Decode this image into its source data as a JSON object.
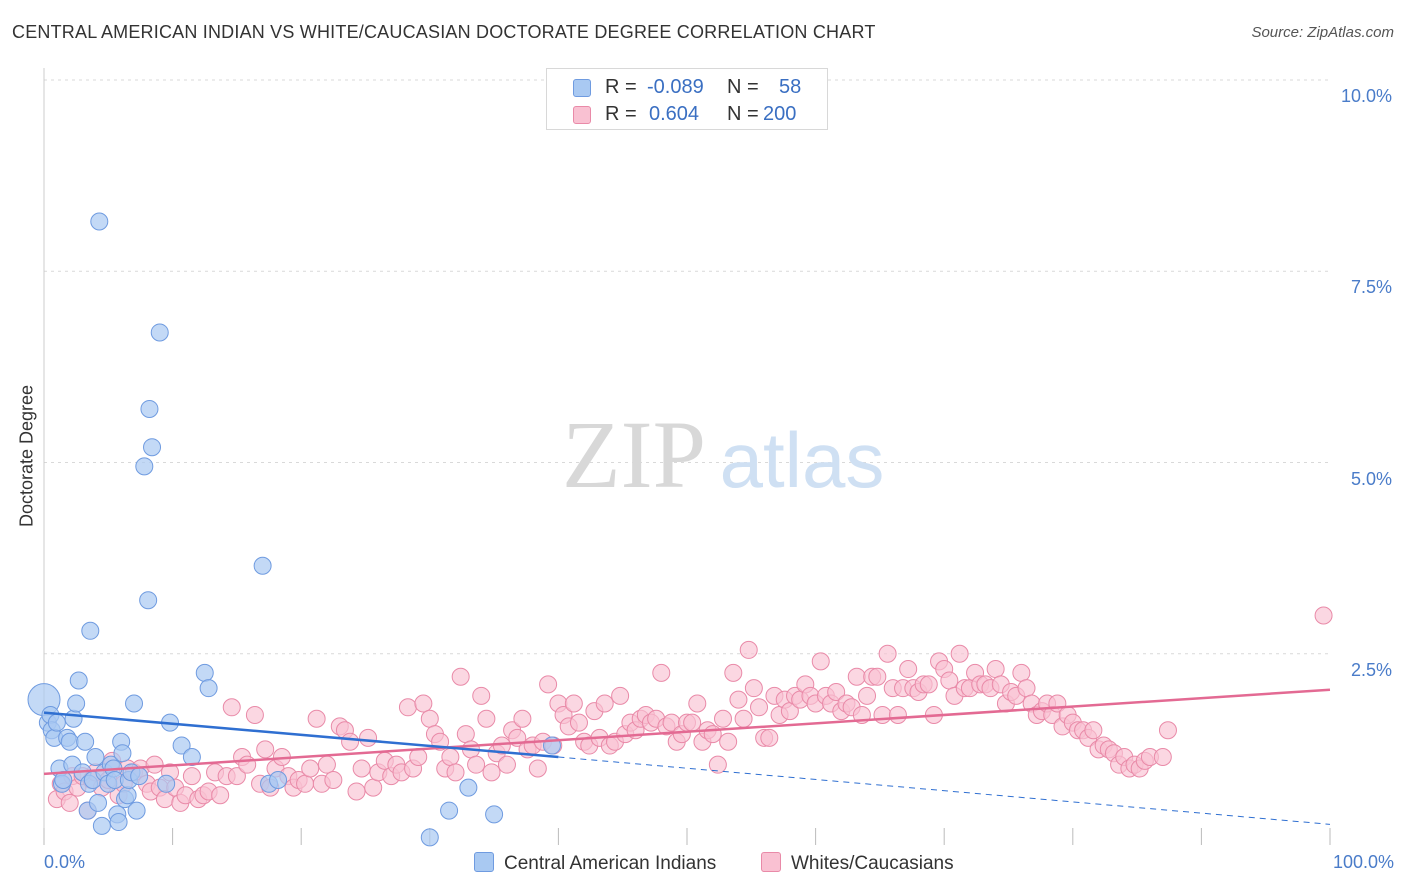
{
  "title": "CENTRAL AMERICAN INDIAN VS WHITE/CAUCASIAN DOCTORATE DEGREE CORRELATION CHART",
  "source": "Source: ZipAtlas.com",
  "watermark": {
    "zip": "ZIP",
    "atlas": "atlas"
  },
  "legend_stats": [
    {
      "r_label": "R =",
      "r_value": "-0.089",
      "n_label": "N =",
      "n_value": "58",
      "color": "#a9c9f2",
      "border": "#6f9be0"
    },
    {
      "r_label": "R =",
      "r_value": "0.604",
      "n_label": "N =",
      "n_value": "200",
      "color": "#f9c1d2",
      "border": "#e98aa8"
    }
  ],
  "colors": {
    "blue_fill": "#a9c9f2",
    "blue_stroke": "#6f9be0",
    "blue_line": "#2f6fd1",
    "pink_fill": "#f9c1d2",
    "pink_stroke": "#e98aa8",
    "pink_line": "#e36a93",
    "tick_text": "#4a7cc9",
    "grid": "#d9d9d9"
  },
  "chart_data": {
    "type": "scatter",
    "title": "CENTRAL AMERICAN INDIAN VS WHITE/CAUCASIAN DOCTORATE DEGREE CORRELATION CHART",
    "xlabel": "",
    "ylabel": "Doctorate Degree",
    "xlim": [
      0,
      100
    ],
    "ylim": [
      0,
      10
    ],
    "x_tick_labels": [
      {
        "value": 0,
        "label": "0.0%"
      },
      {
        "value": 100,
        "label": "100.0%"
      }
    ],
    "y_tick_labels": [
      {
        "value": 2.5,
        "label": "2.5%"
      },
      {
        "value": 5.0,
        "label": "5.0%"
      },
      {
        "value": 7.5,
        "label": "7.5%"
      },
      {
        "value": 10.0,
        "label": "10.0%"
      }
    ],
    "grid": true,
    "legend_position": "bottom",
    "series": [
      {
        "name": "Central American Indians",
        "r": -0.089,
        "n": 58,
        "trend": {
          "x": [
            0,
            40
          ],
          "y": [
            1.73,
            1.15
          ],
          "dashed_to": [
            100,
            0.27
          ]
        },
        "points": [
          [
            0,
            1.9
          ],
          [
            0.3,
            1.6
          ],
          [
            0.5,
            1.7
          ],
          [
            0.6,
            1.5
          ],
          [
            0.8,
            1.4
          ],
          [
            1,
            1.6
          ],
          [
            1.2,
            1.0
          ],
          [
            1.4,
            0.8
          ],
          [
            1.5,
            0.85
          ],
          [
            1.8,
            1.4
          ],
          [
            2,
            1.35
          ],
          [
            2.2,
            1.05
          ],
          [
            2.3,
            1.65
          ],
          [
            2.5,
            1.85
          ],
          [
            2.7,
            2.15
          ],
          [
            3,
            0.95
          ],
          [
            3.2,
            1.35
          ],
          [
            3.4,
            0.45
          ],
          [
            3.5,
            0.8
          ],
          [
            3.6,
            2.8
          ],
          [
            3.8,
            0.85
          ],
          [
            4,
            1.15
          ],
          [
            4.2,
            0.55
          ],
          [
            4.3,
            8.15
          ],
          [
            4.5,
            0.25
          ],
          [
            4.7,
            0.95
          ],
          [
            5,
            0.8
          ],
          [
            5.2,
            1.05
          ],
          [
            5.4,
            1.0
          ],
          [
            5.5,
            0.85
          ],
          [
            5.7,
            0.4
          ],
          [
            5.8,
            0.3
          ],
          [
            6,
            1.35
          ],
          [
            6.1,
            1.2
          ],
          [
            6.3,
            0.6
          ],
          [
            6.5,
            0.65
          ],
          [
            6.6,
            0.85
          ],
          [
            6.8,
            0.95
          ],
          [
            7,
            1.85
          ],
          [
            7.2,
            0.45
          ],
          [
            7.4,
            0.9
          ],
          [
            7.8,
            4.95
          ],
          [
            8.1,
            3.2
          ],
          [
            8.2,
            5.7
          ],
          [
            8.4,
            5.2
          ],
          [
            9,
            6.7
          ],
          [
            9.5,
            0.8
          ],
          [
            9.8,
            1.6
          ],
          [
            10.7,
            1.3
          ],
          [
            11.5,
            1.15
          ],
          [
            12.5,
            2.25
          ],
          [
            12.8,
            2.05
          ],
          [
            17,
            3.65
          ],
          [
            17.5,
            0.8
          ],
          [
            18.2,
            0.85
          ],
          [
            30,
            0.1
          ],
          [
            31.5,
            0.45
          ],
          [
            33,
            0.75
          ],
          [
            35,
            0.4
          ],
          [
            39.5,
            1.3
          ]
        ]
      },
      {
        "name": "Whites/Caucasians",
        "r": 0.604,
        "n": 200,
        "trend": {
          "x": [
            0,
            100
          ],
          "y": [
            0.93,
            2.03
          ]
        },
        "points": [
          [
            1,
            0.6
          ],
          [
            1.3,
            0.8
          ],
          [
            1.6,
            0.7
          ],
          [
            2,
            0.55
          ],
          [
            2.2,
            0.9
          ],
          [
            2.6,
            0.75
          ],
          [
            3,
            0.9
          ],
          [
            3.4,
            0.45
          ],
          [
            3.7,
            0.85
          ],
          [
            4,
            0.95
          ],
          [
            4.5,
            0.75
          ],
          [
            5,
            0.85
          ],
          [
            5.3,
            1.1
          ],
          [
            5.8,
            0.65
          ],
          [
            6.2,
            0.8
          ],
          [
            6.5,
            1.0
          ],
          [
            7,
            0.95
          ],
          [
            7.5,
            1.0
          ],
          [
            8,
            0.8
          ],
          [
            8.3,
            0.7
          ],
          [
            8.6,
            1.05
          ],
          [
            9,
            0.75
          ],
          [
            9.4,
            0.6
          ],
          [
            9.8,
            0.95
          ],
          [
            10.2,
            0.75
          ],
          [
            10.6,
            0.55
          ],
          [
            11,
            0.65
          ],
          [
            11.5,
            0.9
          ],
          [
            12,
            0.6
          ],
          [
            12.4,
            0.65
          ],
          [
            12.8,
            0.7
          ],
          [
            13.3,
            0.95
          ],
          [
            13.7,
            0.65
          ],
          [
            14.2,
            0.9
          ],
          [
            14.6,
            1.8
          ],
          [
            15,
            0.9
          ],
          [
            15.4,
            1.15
          ],
          [
            15.8,
            1.05
          ],
          [
            16.4,
            1.7
          ],
          [
            16.8,
            0.8
          ],
          [
            17.2,
            1.25
          ],
          [
            17.6,
            0.75
          ],
          [
            18,
            1.0
          ],
          [
            18.5,
            1.15
          ],
          [
            19,
            0.9
          ],
          [
            19.4,
            0.75
          ],
          [
            19.8,
            0.85
          ],
          [
            20.3,
            0.8
          ],
          [
            20.7,
            1.0
          ],
          [
            21.2,
            1.65
          ],
          [
            21.6,
            0.8
          ],
          [
            22,
            1.05
          ],
          [
            22.5,
            0.85
          ],
          [
            23,
            1.55
          ],
          [
            23.4,
            1.5
          ],
          [
            23.8,
            1.35
          ],
          [
            24.3,
            0.7
          ],
          [
            24.7,
            1.0
          ],
          [
            25.2,
            1.4
          ],
          [
            25.6,
            0.75
          ],
          [
            26,
            0.95
          ],
          [
            26.5,
            1.1
          ],
          [
            27,
            0.9
          ],
          [
            27.4,
            1.05
          ],
          [
            27.8,
            0.95
          ],
          [
            28.3,
            1.8
          ],
          [
            28.7,
            1.0
          ],
          [
            29.1,
            1.15
          ],
          [
            29.5,
            1.85
          ],
          [
            30,
            1.65
          ],
          [
            30.4,
            1.45
          ],
          [
            30.8,
            1.35
          ],
          [
            31.2,
            1.0
          ],
          [
            31.6,
            1.15
          ],
          [
            32,
            0.95
          ],
          [
            32.4,
            2.2
          ],
          [
            32.8,
            1.45
          ],
          [
            33.2,
            1.25
          ],
          [
            33.6,
            1.05
          ],
          [
            34,
            1.95
          ],
          [
            34.4,
            1.65
          ],
          [
            34.8,
            0.95
          ],
          [
            35.2,
            1.2
          ],
          [
            35.6,
            1.3
          ],
          [
            36,
            1.05
          ],
          [
            36.4,
            1.5
          ],
          [
            36.8,
            1.4
          ],
          [
            37.2,
            1.65
          ],
          [
            37.6,
            1.25
          ],
          [
            38,
            1.3
          ],
          [
            38.4,
            1.0
          ],
          [
            38.8,
            1.35
          ],
          [
            39.2,
            2.1
          ],
          [
            39.6,
            1.3
          ],
          [
            40,
            1.85
          ],
          [
            40.4,
            1.7
          ],
          [
            40.8,
            1.55
          ],
          [
            41.2,
            1.85
          ],
          [
            41.6,
            1.6
          ],
          [
            42,
            1.35
          ],
          [
            42.4,
            1.3
          ],
          [
            42.8,
            1.75
          ],
          [
            43.2,
            1.4
          ],
          [
            43.6,
            1.85
          ],
          [
            44,
            1.3
          ],
          [
            44.4,
            1.35
          ],
          [
            44.8,
            1.95
          ],
          [
            45.2,
            1.45
          ],
          [
            45.6,
            1.6
          ],
          [
            46,
            1.5
          ],
          [
            46.4,
            1.65
          ],
          [
            46.8,
            1.7
          ],
          [
            47.2,
            1.6
          ],
          [
            47.6,
            1.65
          ],
          [
            48,
            2.25
          ],
          [
            48.4,
            1.55
          ],
          [
            48.8,
            1.6
          ],
          [
            49.2,
            1.35
          ],
          [
            49.6,
            1.45
          ],
          [
            50,
            1.6
          ],
          [
            50.4,
            1.6
          ],
          [
            50.8,
            1.85
          ],
          [
            51.2,
            1.35
          ],
          [
            51.6,
            1.5
          ],
          [
            52,
            1.45
          ],
          [
            52.4,
            1.05
          ],
          [
            52.8,
            1.65
          ],
          [
            53.2,
            1.35
          ],
          [
            53.6,
            2.25
          ],
          [
            54,
            1.9
          ],
          [
            54.4,
            1.65
          ],
          [
            54.8,
            2.55
          ],
          [
            55.2,
            2.05
          ],
          [
            55.6,
            1.8
          ],
          [
            56,
            1.4
          ],
          [
            56.4,
            1.4
          ],
          [
            56.8,
            1.95
          ],
          [
            57.2,
            1.7
          ],
          [
            57.6,
            1.9
          ],
          [
            58,
            1.75
          ],
          [
            58.4,
            1.95
          ],
          [
            58.8,
            1.9
          ],
          [
            59.2,
            2.1
          ],
          [
            59.6,
            1.95
          ],
          [
            60,
            1.85
          ],
          [
            60.4,
            2.4
          ],
          [
            60.8,
            1.95
          ],
          [
            61.2,
            1.85
          ],
          [
            61.6,
            2.0
          ],
          [
            62,
            1.75
          ],
          [
            62.4,
            1.85
          ],
          [
            62.8,
            1.8
          ],
          [
            63.2,
            2.2
          ],
          [
            63.6,
            1.7
          ],
          [
            64,
            1.95
          ],
          [
            64.4,
            2.2
          ],
          [
            64.8,
            2.2
          ],
          [
            65.2,
            1.7
          ],
          [
            65.6,
            2.5
          ],
          [
            66,
            2.05
          ],
          [
            66.4,
            1.7
          ],
          [
            66.8,
            2.05
          ],
          [
            67.2,
            2.3
          ],
          [
            67.6,
            2.05
          ],
          [
            68,
            2.0
          ],
          [
            68.4,
            2.1
          ],
          [
            68.8,
            2.1
          ],
          [
            69.2,
            1.7
          ],
          [
            69.6,
            2.4
          ],
          [
            70,
            2.3
          ],
          [
            70.4,
            2.15
          ],
          [
            70.8,
            1.95
          ],
          [
            71.2,
            2.5
          ],
          [
            71.6,
            2.05
          ],
          [
            72,
            2.05
          ],
          [
            72.4,
            2.25
          ],
          [
            72.8,
            2.1
          ],
          [
            73.2,
            2.1
          ],
          [
            73.6,
            2.05
          ],
          [
            74,
            2.3
          ],
          [
            74.4,
            2.1
          ],
          [
            74.8,
            1.85
          ],
          [
            75.2,
            2.0
          ],
          [
            75.6,
            1.95
          ],
          [
            76,
            2.25
          ],
          [
            76.4,
            2.05
          ],
          [
            76.8,
            1.85
          ],
          [
            77.2,
            1.7
          ],
          [
            77.6,
            1.75
          ],
          [
            78,
            1.85
          ],
          [
            78.4,
            1.7
          ],
          [
            78.8,
            1.85
          ],
          [
            79.2,
            1.55
          ],
          [
            79.6,
            1.7
          ],
          [
            80,
            1.6
          ],
          [
            80.4,
            1.5
          ],
          [
            80.8,
            1.5
          ],
          [
            81.2,
            1.4
          ],
          [
            81.6,
            1.5
          ],
          [
            82,
            1.25
          ],
          [
            82.4,
            1.3
          ],
          [
            82.8,
            1.25
          ],
          [
            83.2,
            1.2
          ],
          [
            83.6,
            1.05
          ],
          [
            84,
            1.15
          ],
          [
            84.4,
            1.0
          ],
          [
            84.8,
            1.05
          ],
          [
            85.2,
            1.0
          ],
          [
            85.6,
            1.1
          ],
          [
            86,
            1.15
          ],
          [
            87,
            1.15
          ],
          [
            87.4,
            1.5
          ],
          [
            99.5,
            3.0
          ]
        ]
      }
    ]
  }
}
